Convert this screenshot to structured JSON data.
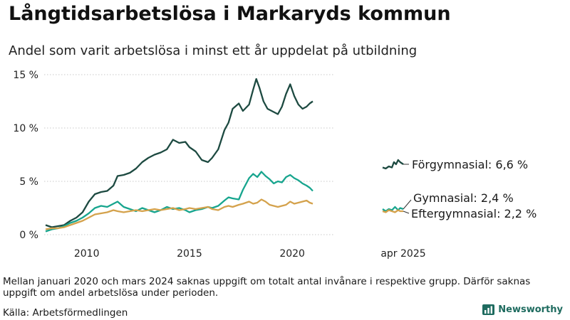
{
  "header": {
    "title": "Långtidsarbetslösa i Markaryds kommun",
    "subtitle": "Andel som varit arbetslösa i minst ett år uppdelat på utbildning"
  },
  "footer": {
    "note": "Mellan januari 2020 och mars 2024 saknas uppgift om totalt antal invånare i respektive grupp. Därför saknas uppgift om andel arbetslösa under perioden.",
    "source": "Källa: Arbetsförmedlingen",
    "brand": "Newsworthy"
  },
  "colors": {
    "forgymnasial": "#1d4a41",
    "gymnasial": "#17a58e",
    "eftergymnasial": "#d4a24c",
    "grid": "#c8c8c8",
    "brand": "#1e6b5f"
  },
  "icons": {
    "brand_logo": "bar-chart-icon"
  },
  "chart_data": {
    "type": "line",
    "title": "Långtidsarbetslösa i Markaryds kommun",
    "subtitle": "Andel som varit arbetslösa i minst ett år uppdelat på utbildning",
    "x_ticks": [
      "2010",
      "2015",
      "2020",
      "apr 2025"
    ],
    "y_ticks": [
      "0 %",
      "5 %",
      "10 %",
      "15 %"
    ],
    "ylim": [
      0,
      15
    ],
    "grid": "horizontal",
    "x_range_main": [
      2008.0,
      2021.0
    ],
    "x_range_recent": [
      2024.25,
      2025.25
    ],
    "series": [
      {
        "name": "Förgymnasial",
        "label": "Förgymnasial: 6,6 %",
        "color_key": "forgymnasial",
        "points": [
          [
            2008.0,
            0.9
          ],
          [
            2008.3,
            0.7
          ],
          [
            2008.6,
            0.8
          ],
          [
            2008.9,
            0.9
          ],
          [
            2009.2,
            1.3
          ],
          [
            2009.5,
            1.6
          ],
          [
            2009.8,
            2.1
          ],
          [
            2010.1,
            3.1
          ],
          [
            2010.4,
            3.8
          ],
          [
            2010.7,
            4.0
          ],
          [
            2011.0,
            4.1
          ],
          [
            2011.3,
            4.6
          ],
          [
            2011.5,
            5.5
          ],
          [
            2011.8,
            5.6
          ],
          [
            2012.1,
            5.8
          ],
          [
            2012.4,
            6.2
          ],
          [
            2012.7,
            6.8
          ],
          [
            2013.0,
            7.2
          ],
          [
            2013.3,
            7.5
          ],
          [
            2013.6,
            7.7
          ],
          [
            2013.9,
            8.0
          ],
          [
            2014.2,
            8.9
          ],
          [
            2014.5,
            8.6
          ],
          [
            2014.8,
            8.7
          ],
          [
            2015.0,
            8.2
          ],
          [
            2015.3,
            7.8
          ],
          [
            2015.6,
            7.0
          ],
          [
            2015.9,
            6.8
          ],
          [
            2016.1,
            7.2
          ],
          [
            2016.4,
            8.0
          ],
          [
            2016.7,
            9.8
          ],
          [
            2016.9,
            10.5
          ],
          [
            2017.1,
            11.8
          ],
          [
            2017.4,
            12.3
          ],
          [
            2017.6,
            11.6
          ],
          [
            2017.9,
            12.2
          ],
          [
            2018.1,
            13.6
          ],
          [
            2018.25,
            14.6
          ],
          [
            2018.4,
            13.8
          ],
          [
            2018.6,
            12.5
          ],
          [
            2018.8,
            11.8
          ],
          [
            2019.0,
            11.6
          ],
          [
            2019.3,
            11.3
          ],
          [
            2019.5,
            12.0
          ],
          [
            2019.7,
            13.2
          ],
          [
            2019.9,
            14.1
          ],
          [
            2020.1,
            13.0
          ],
          [
            2020.3,
            12.2
          ],
          [
            2020.5,
            11.8
          ],
          [
            2020.7,
            12.0
          ],
          [
            2020.85,
            12.3
          ],
          [
            2021.0,
            12.5
          ],
          [
            2024.25,
            6.3
          ],
          [
            2024.4,
            6.2
          ],
          [
            2024.55,
            6.4
          ],
          [
            2024.7,
            6.3
          ],
          [
            2024.8,
            6.8
          ],
          [
            2024.9,
            6.6
          ],
          [
            2025.0,
            7.0
          ],
          [
            2025.1,
            6.8
          ],
          [
            2025.25,
            6.6
          ]
        ]
      },
      {
        "name": "Gymnasial",
        "label": "Gymnasial: 2,4 %",
        "color_key": "gymnasial",
        "points": [
          [
            2008.0,
            0.3
          ],
          [
            2008.3,
            0.5
          ],
          [
            2008.6,
            0.6
          ],
          [
            2008.9,
            0.8
          ],
          [
            2009.2,
            1.1
          ],
          [
            2009.5,
            1.3
          ],
          [
            2009.8,
            1.6
          ],
          [
            2010.1,
            2.0
          ],
          [
            2010.4,
            2.5
          ],
          [
            2010.7,
            2.7
          ],
          [
            2011.0,
            2.6
          ],
          [
            2011.3,
            2.9
          ],
          [
            2011.5,
            3.1
          ],
          [
            2011.8,
            2.6
          ],
          [
            2012.1,
            2.4
          ],
          [
            2012.4,
            2.2
          ],
          [
            2012.7,
            2.5
          ],
          [
            2013.0,
            2.3
          ],
          [
            2013.3,
            2.1
          ],
          [
            2013.6,
            2.3
          ],
          [
            2013.9,
            2.6
          ],
          [
            2014.2,
            2.4
          ],
          [
            2014.5,
            2.5
          ],
          [
            2014.8,
            2.3
          ],
          [
            2015.0,
            2.1
          ],
          [
            2015.3,
            2.3
          ],
          [
            2015.6,
            2.4
          ],
          [
            2015.9,
            2.6
          ],
          [
            2016.1,
            2.5
          ],
          [
            2016.4,
            2.7
          ],
          [
            2016.7,
            3.2
          ],
          [
            2016.9,
            3.5
          ],
          [
            2017.1,
            3.4
          ],
          [
            2017.4,
            3.3
          ],
          [
            2017.6,
            4.2
          ],
          [
            2017.9,
            5.3
          ],
          [
            2018.1,
            5.7
          ],
          [
            2018.3,
            5.4
          ],
          [
            2018.5,
            5.9
          ],
          [
            2018.7,
            5.5
          ],
          [
            2018.9,
            5.2
          ],
          [
            2019.1,
            4.8
          ],
          [
            2019.3,
            5.0
          ],
          [
            2019.5,
            4.9
          ],
          [
            2019.7,
            5.4
          ],
          [
            2019.9,
            5.6
          ],
          [
            2020.1,
            5.3
          ],
          [
            2020.3,
            5.1
          ],
          [
            2020.5,
            4.8
          ],
          [
            2020.7,
            4.6
          ],
          [
            2020.85,
            4.4
          ],
          [
            2021.0,
            4.1
          ],
          [
            2024.25,
            2.4
          ],
          [
            2024.4,
            2.2
          ],
          [
            2024.55,
            2.4
          ],
          [
            2024.7,
            2.3
          ],
          [
            2024.85,
            2.6
          ],
          [
            2025.0,
            2.3
          ],
          [
            2025.1,
            2.5
          ],
          [
            2025.25,
            2.4
          ]
        ]
      },
      {
        "name": "Eftergymnasial",
        "label": "Eftergymnasial: 2,2 %",
        "color_key": "eftergymnasial",
        "points": [
          [
            2008.0,
            0.5
          ],
          [
            2008.3,
            0.6
          ],
          [
            2008.6,
            0.6
          ],
          [
            2008.9,
            0.7
          ],
          [
            2009.2,
            0.9
          ],
          [
            2009.5,
            1.1
          ],
          [
            2009.8,
            1.3
          ],
          [
            2010.1,
            1.6
          ],
          [
            2010.4,
            1.9
          ],
          [
            2010.7,
            2.0
          ],
          [
            2011.0,
            2.1
          ],
          [
            2011.3,
            2.3
          ],
          [
            2011.5,
            2.2
          ],
          [
            2011.8,
            2.1
          ],
          [
            2012.1,
            2.2
          ],
          [
            2012.4,
            2.3
          ],
          [
            2012.7,
            2.2
          ],
          [
            2013.0,
            2.3
          ],
          [
            2013.3,
            2.4
          ],
          [
            2013.6,
            2.3
          ],
          [
            2013.9,
            2.4
          ],
          [
            2014.2,
            2.5
          ],
          [
            2014.5,
            2.3
          ],
          [
            2014.8,
            2.4
          ],
          [
            2015.0,
            2.5
          ],
          [
            2015.3,
            2.4
          ],
          [
            2015.6,
            2.5
          ],
          [
            2015.9,
            2.6
          ],
          [
            2016.1,
            2.4
          ],
          [
            2016.4,
            2.3
          ],
          [
            2016.7,
            2.6
          ],
          [
            2016.9,
            2.7
          ],
          [
            2017.1,
            2.6
          ],
          [
            2017.4,
            2.8
          ],
          [
            2017.6,
            2.9
          ],
          [
            2017.9,
            3.1
          ],
          [
            2018.1,
            2.9
          ],
          [
            2018.3,
            3.0
          ],
          [
            2018.5,
            3.3
          ],
          [
            2018.7,
            3.1
          ],
          [
            2018.9,
            2.8
          ],
          [
            2019.1,
            2.7
          ],
          [
            2019.3,
            2.6
          ],
          [
            2019.5,
            2.7
          ],
          [
            2019.7,
            2.8
          ],
          [
            2019.9,
            3.1
          ],
          [
            2020.1,
            2.9
          ],
          [
            2020.3,
            3.0
          ],
          [
            2020.5,
            3.1
          ],
          [
            2020.7,
            3.2
          ],
          [
            2020.85,
            3.0
          ],
          [
            2021.0,
            2.9
          ],
          [
            2024.25,
            2.2
          ],
          [
            2024.4,
            2.1
          ],
          [
            2024.55,
            2.3
          ],
          [
            2024.7,
            2.2
          ],
          [
            2024.85,
            2.1
          ],
          [
            2025.0,
            2.3
          ],
          [
            2025.1,
            2.2
          ],
          [
            2025.25,
            2.2
          ]
        ]
      }
    ]
  }
}
